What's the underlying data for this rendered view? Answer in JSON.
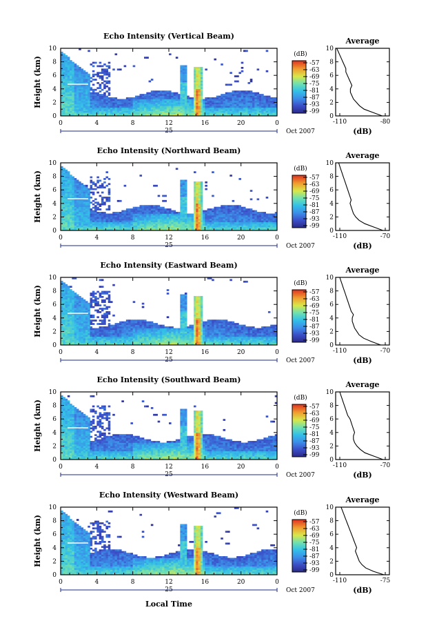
{
  "chart_data": {
    "type": "heatmap",
    "x_ticks": [
      "0",
      "4",
      "8",
      "12",
      "16",
      "20",
      "0"
    ],
    "x_range": [
      0,
      24
    ],
    "y_ticks": [
      "0",
      "2",
      "4",
      "6",
      "8",
      "10"
    ],
    "y_range": [
      0,
      10
    ],
    "ylabel": "Height (km)",
    "day_label": "25",
    "date_label": "Oct 2007",
    "xlabel": "Local Time",
    "colorbar": {
      "label": "(dB)",
      "ticks": [
        "-57",
        "-63",
        "-69",
        "-75",
        "-81",
        "-87",
        "-93",
        "-99"
      ]
    },
    "panels": [
      {
        "title": "Echo Intensity (Vertical Beam)",
        "avg_title": "Average",
        "avg_xticks": [
          "-110",
          "-80"
        ],
        "avg_xlabel": "(dB)",
        "avg_xrange": [
          -110,
          -80
        ],
        "avg_profile": {
          "height": [
            0,
            0.5,
            1,
            1.5,
            2,
            2.5,
            3,
            3.5,
            4,
            4.5,
            5,
            5.5,
            6,
            6.5,
            7,
            7.5,
            8,
            8.5,
            9,
            9.5,
            10
          ],
          "db": [
            -82,
            -88,
            -94,
            -97,
            -99,
            -101,
            -102,
            -103,
            -103,
            -102,
            -103,
            -104,
            -105,
            -106,
            -106,
            -107,
            -108,
            -109,
            -110,
            -111,
            -112
          ]
        }
      },
      {
        "title": "Echo Intensity (Northward Beam)",
        "avg_title": "Average",
        "avg_xticks": [
          "-110",
          "-70"
        ],
        "avg_xlabel": "(dB)",
        "avg_xrange": [
          -110,
          -70
        ],
        "avg_profile": {
          "height": [
            0,
            0.5,
            1,
            1.5,
            2,
            2.5,
            3,
            3.5,
            4,
            4.5,
            5,
            5.5,
            6,
            6.5,
            7,
            7.5,
            8,
            8.5,
            9,
            9.5,
            10
          ],
          "db": [
            -72,
            -80,
            -88,
            -93,
            -96,
            -98,
            -99,
            -100,
            -101,
            -100,
            -101,
            -102,
            -103,
            -104,
            -105,
            -106,
            -107,
            -108,
            -109,
            -110,
            -111
          ]
        }
      },
      {
        "title": "Echo Intensity (Eastward Beam)",
        "avg_title": "Average",
        "avg_xticks": [
          "-110",
          "-70"
        ],
        "avg_xlabel": "(dB)",
        "avg_xrange": [
          -110,
          -70
        ],
        "avg_profile": {
          "height": [
            0,
            0.5,
            1,
            1.5,
            2,
            2.5,
            3,
            3.5,
            4,
            4.5,
            5,
            5.5,
            6,
            6.5,
            7,
            7.5,
            8,
            8.5,
            9,
            9.5,
            10
          ],
          "db": [
            -74,
            -82,
            -89,
            -93,
            -95,
            -97,
            -98,
            -99,
            -99,
            -98,
            -100,
            -101,
            -102,
            -103,
            -104,
            -105,
            -106,
            -107,
            -108,
            -109,
            -110
          ]
        }
      },
      {
        "title": "Echo Intensity (Southward Beam)",
        "avg_title": "Average",
        "avg_xticks": [
          "-110",
          "-70"
        ],
        "avg_xlabel": "(dB)",
        "avg_xrange": [
          -110,
          -70
        ],
        "avg_profile": {
          "height": [
            0,
            0.5,
            1,
            1.5,
            2,
            2.5,
            3,
            3.5,
            4,
            4.5,
            5,
            5.5,
            6,
            6.5,
            7,
            7.5,
            8,
            8.5,
            9,
            9.5,
            10
          ],
          "db": [
            -72,
            -80,
            -88,
            -92,
            -95,
            -97,
            -98,
            -98,
            -97,
            -98,
            -99,
            -100,
            -101,
            -103,
            -104,
            -105,
            -106,
            -107,
            -108,
            -109,
            -110
          ]
        }
      },
      {
        "title": "Echo Intensity (Westward Beam)",
        "avg_title": "Average",
        "avg_xticks": [
          "-110",
          "-75"
        ],
        "avg_xlabel": "(dB)",
        "avg_xrange": [
          -110,
          -75
        ],
        "avg_profile": {
          "height": [
            0,
            0.5,
            1,
            1.5,
            2,
            2.5,
            3,
            3.5,
            4,
            4.5,
            5,
            5.5,
            6,
            6.5,
            7,
            7.5,
            8,
            8.5,
            9,
            9.5,
            10
          ],
          "db": [
            -76,
            -84,
            -90,
            -93,
            -95,
            -96,
            -97,
            -98,
            -97,
            -98,
            -99,
            -100,
            -101,
            -102,
            -103,
            -104,
            -105,
            -106,
            -107,
            -108,
            -109
          ]
        }
      }
    ]
  }
}
